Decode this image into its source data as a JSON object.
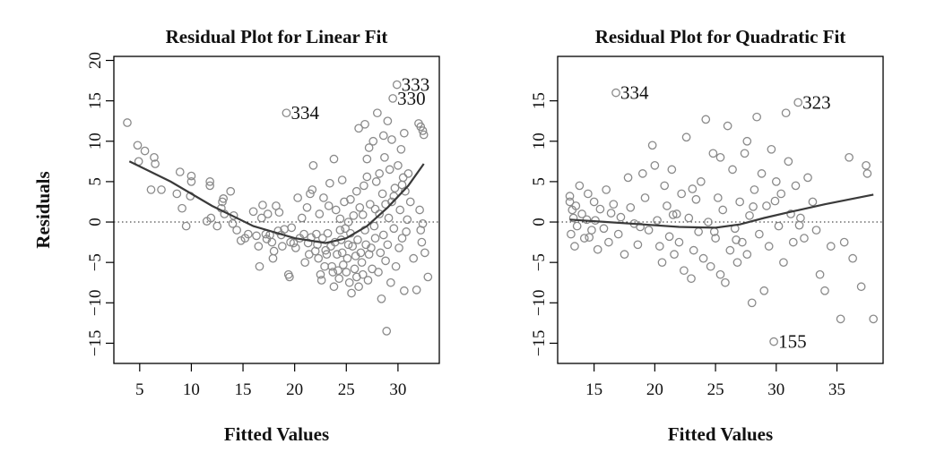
{
  "chart_data": [
    {
      "type": "scatter",
      "title": "Residual Plot for Linear Fit",
      "xlabel": "Fitted Values",
      "ylabel": "Residuals",
      "xlim": [
        2.5,
        34
      ],
      "ylim": [
        -17.5,
        20.5
      ],
      "xticks": [
        5,
        10,
        15,
        20,
        25,
        30
      ],
      "yticks": [
        -15,
        -10,
        -5,
        0,
        5,
        10,
        15,
        20
      ],
      "xtick_labels": [
        "5",
        "10",
        "15",
        "20",
        "25",
        "30"
      ],
      "ytick_labels": [
        "−15",
        "−10",
        "−5",
        "0",
        "5",
        "10",
        "15",
        "20"
      ],
      "reference_line_y": 0,
      "smooth": [
        [
          4,
          7.5
        ],
        [
          8,
          5.0
        ],
        [
          12,
          2.0
        ],
        [
          16,
          -0.5
        ],
        [
          20,
          -2.0
        ],
        [
          23,
          -2.6
        ],
        [
          25,
          -2.0
        ],
        [
          27,
          -0.5
        ],
        [
          29,
          1.8
        ],
        [
          31,
          4.5
        ],
        [
          32.5,
          7.2
        ]
      ],
      "annotations": [
        {
          "text": "334",
          "x": 19.2,
          "y": 13.5
        },
        {
          "text": "333",
          "x": 29.9,
          "y": 17.0
        },
        {
          "text": "330",
          "x": 29.5,
          "y": 15.3
        }
      ],
      "points": [
        [
          3.8,
          12.3
        ],
        [
          4.8,
          9.5
        ],
        [
          5.5,
          8.8
        ],
        [
          6.4,
          8.0
        ],
        [
          4.9,
          7.5
        ],
        [
          6.5,
          7.2
        ],
        [
          6.1,
          4.0
        ],
        [
          7.1,
          4.0
        ],
        [
          8.9,
          6.2
        ],
        [
          8.6,
          3.5
        ],
        [
          9.1,
          1.7
        ],
        [
          9.9,
          3.2
        ],
        [
          10.0,
          5.7
        ],
        [
          10.0,
          5.0
        ],
        [
          11.8,
          5.0
        ],
        [
          11.8,
          4.5
        ],
        [
          9.5,
          -0.5
        ],
        [
          11.5,
          0.1
        ],
        [
          11.9,
          0.5
        ],
        [
          12.9,
          1.7
        ],
        [
          13.0,
          2.5
        ],
        [
          13.1,
          2.9
        ],
        [
          13.2,
          1.0
        ],
        [
          12.5,
          -0.5
        ],
        [
          13.8,
          3.8
        ],
        [
          14.0,
          -0.2
        ],
        [
          14.1,
          0.8
        ],
        [
          14.4,
          -1.0
        ],
        [
          14.8,
          -2.3
        ],
        [
          15.2,
          -2.0
        ],
        [
          15.5,
          -1.5
        ],
        [
          16.0,
          1.3
        ],
        [
          16.3,
          -1.7
        ],
        [
          16.5,
          -3.0
        ],
        [
          16.6,
          -5.5
        ],
        [
          16.8,
          0.5
        ],
        [
          16.9,
          2.1
        ],
        [
          17.2,
          -1.5
        ],
        [
          17.3,
          -2.1
        ],
        [
          17.4,
          1.0
        ],
        [
          17.6,
          -1.6
        ],
        [
          17.8,
          -2.5
        ],
        [
          17.9,
          -4.5
        ],
        [
          18.0,
          -3.6
        ],
        [
          18.2,
          2.0
        ],
        [
          18.4,
          -1.1
        ],
        [
          18.5,
          1.2
        ],
        [
          18.7,
          -1.6
        ],
        [
          18.8,
          -3.0
        ],
        [
          19.0,
          -0.9
        ],
        [
          19.2,
          13.5
        ],
        [
          19.4,
          -6.5
        ],
        [
          19.5,
          -6.8
        ],
        [
          19.6,
          -2.5
        ],
        [
          19.7,
          -0.7
        ],
        [
          19.9,
          -2.6
        ],
        [
          20.1,
          -3.2
        ],
        [
          20.3,
          3.0
        ],
        [
          20.5,
          -2.0
        ],
        [
          20.7,
          0.5
        ],
        [
          20.9,
          -1.5
        ],
        [
          21.0,
          -5.0
        ],
        [
          21.2,
          1.8
        ],
        [
          21.3,
          -2.6
        ],
        [
          21.4,
          -4.0
        ],
        [
          21.5,
          3.5
        ],
        [
          21.6,
          -1.9
        ],
        [
          21.7,
          4.0
        ],
        [
          21.8,
          7.0
        ],
        [
          22.0,
          -3.6
        ],
        [
          22.1,
          -1.5
        ],
        [
          22.2,
          -2.8
        ],
        [
          22.3,
          -4.5
        ],
        [
          22.4,
          1.0
        ],
        [
          22.5,
          -6.5
        ],
        [
          22.6,
          -7.2
        ],
        [
          22.7,
          -2.0
        ],
        [
          22.8,
          3.0
        ],
        [
          22.9,
          -5.5
        ],
        [
          23.0,
          -3.5
        ],
        [
          23.1,
          -4.0
        ],
        [
          23.2,
          -1.4
        ],
        [
          23.3,
          2.0
        ],
        [
          23.4,
          4.8
        ],
        [
          23.5,
          -3.0
        ],
        [
          23.6,
          -5.5
        ],
        [
          23.7,
          -6.2
        ],
        [
          23.8,
          -8.0
        ],
        [
          23.9,
          -2.5
        ],
        [
          24.0,
          1.5
        ],
        [
          24.1,
          -4.0
        ],
        [
          24.2,
          -6.0
        ],
        [
          24.3,
          -7.0
        ],
        [
          24.4,
          -1.0
        ],
        [
          24.5,
          -2.2
        ],
        [
          24.6,
          -3.8
        ],
        [
          24.7,
          -5.3
        ],
        [
          24.8,
          2.5
        ],
        [
          24.9,
          -0.8
        ],
        [
          25.0,
          -6.2
        ],
        [
          25.1,
          -4.5
        ],
        [
          25.2,
          -2.8
        ],
        [
          25.3,
          -7.5
        ],
        [
          25.4,
          -1.4
        ],
        [
          25.5,
          -8.8
        ],
        [
          25.6,
          -3.0
        ],
        [
          25.7,
          0.8
        ],
        [
          25.8,
          -5.8
        ],
        [
          25.9,
          -4.2
        ],
        [
          26.0,
          -6.8
        ],
        [
          26.1,
          -2.2
        ],
        [
          26.2,
          -8.0
        ],
        [
          26.3,
          1.8
        ],
        [
          26.4,
          -3.8
        ],
        [
          26.5,
          -5.0
        ],
        [
          26.6,
          -6.5
        ],
        [
          26.7,
          4.5
        ],
        [
          26.8,
          -1.0
        ],
        [
          26.9,
          -2.8
        ],
        [
          27.0,
          7.8
        ],
        [
          27.1,
          -7.2
        ],
        [
          27.2,
          -4.0
        ],
        [
          27.3,
          2.2
        ],
        [
          27.4,
          -3.2
        ],
        [
          27.5,
          -5.8
        ],
        [
          27.6,
          10.0
        ],
        [
          27.7,
          -0.5
        ],
        [
          27.8,
          -2.0
        ],
        [
          27.9,
          5.0
        ],
        [
          28.0,
          13.5
        ],
        [
          28.1,
          -6.2
        ],
        [
          28.2,
          1.0
        ],
        [
          28.3,
          -3.8
        ],
        [
          28.4,
          -9.5
        ],
        [
          28.5,
          3.5
        ],
        [
          28.6,
          -1.6
        ],
        [
          28.7,
          8.0
        ],
        [
          28.8,
          -4.8
        ],
        [
          28.9,
          -13.5
        ],
        [
          29.0,
          -2.8
        ],
        [
          29.1,
          0.5
        ],
        [
          29.2,
          6.5
        ],
        [
          29.3,
          -7.5
        ],
        [
          29.4,
          2.5
        ],
        [
          29.5,
          15.3
        ],
        [
          29.6,
          -0.8
        ],
        [
          29.7,
          4.2
        ],
        [
          29.8,
          -5.5
        ],
        [
          29.9,
          17.0
        ],
        [
          30.0,
          7.0
        ],
        [
          30.1,
          -3.2
        ],
        [
          30.2,
          1.5
        ],
        [
          30.3,
          9.0
        ],
        [
          30.4,
          -2.0
        ],
        [
          30.5,
          5.5
        ],
        [
          30.6,
          -8.5
        ],
        [
          30.7,
          3.8
        ],
        [
          30.8,
          -1.2
        ],
        [
          30.9,
          0.3
        ],
        [
          31.0,
          6.0
        ],
        [
          31.2,
          2.5
        ],
        [
          31.5,
          -4.5
        ],
        [
          31.8,
          -8.4
        ],
        [
          32.0,
          12.2
        ],
        [
          32.2,
          11.8
        ],
        [
          32.4,
          11.3
        ],
        [
          32.5,
          10.8
        ],
        [
          32.1,
          1.5
        ],
        [
          32.3,
          -2.5
        ],
        [
          32.6,
          -3.8
        ],
        [
          32.9,
          -6.8
        ],
        [
          32.2,
          -1.0
        ],
        [
          32.4,
          -0.2
        ],
        [
          29.0,
          12.5
        ],
        [
          28.6,
          10.7
        ],
        [
          27.2,
          9.2
        ],
        [
          26.2,
          11.6
        ],
        [
          26.8,
          12.1
        ],
        [
          30.6,
          11.0
        ],
        [
          29.4,
          10.2
        ],
        [
          28.2,
          6.0
        ],
        [
          27.0,
          5.6
        ],
        [
          26.0,
          3.8
        ],
        [
          25.4,
          2.8
        ],
        [
          24.6,
          5.2
        ],
        [
          23.8,
          7.8
        ],
        [
          24.4,
          0.4
        ],
        [
          25.2,
          0.0
        ],
        [
          26.6,
          0.9
        ],
        [
          27.8,
          1.6
        ],
        [
          28.8,
          2.2
        ],
        [
          29.6,
          3.2
        ],
        [
          30.4,
          4.6
        ]
      ]
    },
    {
      "type": "scatter",
      "title": "Residual Plot for Quadratic Fit",
      "xlabel": "Fitted Values",
      "ylabel": "",
      "xlim": [
        12,
        38.8
      ],
      "ylim": [
        -17.5,
        20.5
      ],
      "xticks": [
        15,
        20,
        25,
        30,
        35
      ],
      "yticks": [
        -15,
        -10,
        -5,
        0,
        5,
        10,
        15
      ],
      "xtick_labels": [
        "15",
        "20",
        "25",
        "30",
        "35"
      ],
      "ytick_labels": [
        "−15",
        "−10",
        "−5",
        "0",
        "5",
        "10",
        "15"
      ],
      "reference_line_y": 0,
      "smooth": [
        [
          13,
          0.3
        ],
        [
          16,
          0.0
        ],
        [
          19,
          -0.3
        ],
        [
          22,
          -0.6
        ],
        [
          25,
          -0.7
        ],
        [
          27,
          -0.3
        ],
        [
          29,
          0.5
        ],
        [
          31,
          1.2
        ],
        [
          34,
          2.2
        ],
        [
          38,
          3.4
        ]
      ],
      "annotations": [
        {
          "text": "334",
          "x": 16.8,
          "y": 16.0
        },
        {
          "text": "323",
          "x": 31.8,
          "y": 14.8
        },
        {
          "text": "155",
          "x": 29.8,
          "y": -14.8
        }
      ],
      "points": [
        [
          13.0,
          3.2
        ],
        [
          13.0,
          2.5
        ],
        [
          13.1,
          -1.5
        ],
        [
          13.2,
          1.5
        ],
        [
          13.3,
          0.5
        ],
        [
          13.4,
          -3.0
        ],
        [
          13.5,
          2.0
        ],
        [
          13.6,
          -0.5
        ],
        [
          13.8,
          4.5
        ],
        [
          14.0,
          1.0
        ],
        [
          14.2,
          -2.0
        ],
        [
          14.4,
          0.3
        ],
        [
          14.5,
          3.5
        ],
        [
          14.8,
          -1.0
        ],
        [
          15.0,
          2.5
        ],
        [
          15.1,
          0.2
        ],
        [
          15.3,
          -3.4
        ],
        [
          15.5,
          1.6
        ],
        [
          15.8,
          -0.8
        ],
        [
          16.0,
          4.0
        ],
        [
          16.2,
          -2.5
        ],
        [
          16.4,
          1.1
        ],
        [
          16.8,
          16.0
        ],
        [
          17.0,
          -1.5
        ],
        [
          17.2,
          0.6
        ],
        [
          17.5,
          -4.0
        ],
        [
          17.8,
          5.5
        ],
        [
          18.0,
          1.8
        ],
        [
          18.3,
          -0.2
        ],
        [
          18.6,
          -2.8
        ],
        [
          19.0,
          6.0
        ],
        [
          19.2,
          3.0
        ],
        [
          19.5,
          -1.0
        ],
        [
          19.8,
          9.5
        ],
        [
          20.0,
          7.0
        ],
        [
          20.2,
          0.2
        ],
        [
          20.4,
          -3.0
        ],
        [
          20.6,
          -5.0
        ],
        [
          20.8,
          4.5
        ],
        [
          21.0,
          2.0
        ],
        [
          21.2,
          -1.8
        ],
        [
          21.4,
          6.5
        ],
        [
          21.6,
          -4.0
        ],
        [
          21.8,
          1.0
        ],
        [
          22.0,
          -2.5
        ],
        [
          22.2,
          3.5
        ],
        [
          22.4,
          -6.0
        ],
        [
          22.6,
          10.5
        ],
        [
          22.8,
          0.5
        ],
        [
          23.0,
          -7.0
        ],
        [
          23.2,
          -3.5
        ],
        [
          23.4,
          2.8
        ],
        [
          23.6,
          -1.2
        ],
        [
          23.8,
          5.0
        ],
        [
          24.0,
          -4.5
        ],
        [
          24.2,
          12.7
        ],
        [
          24.4,
          0.0
        ],
        [
          24.6,
          -5.5
        ],
        [
          24.8,
          8.5
        ],
        [
          25.0,
          -2.0
        ],
        [
          25.2,
          3.0
        ],
        [
          25.4,
          -6.5
        ],
        [
          25.6,
          1.5
        ],
        [
          25.8,
          -7.5
        ],
        [
          26.0,
          11.9
        ],
        [
          26.2,
          -3.5
        ],
        [
          26.4,
          6.5
        ],
        [
          26.6,
          -0.8
        ],
        [
          26.8,
          -5.0
        ],
        [
          27.0,
          2.5
        ],
        [
          27.2,
          -2.5
        ],
        [
          27.4,
          8.5
        ],
        [
          27.6,
          -4.0
        ],
        [
          27.8,
          0.8
        ],
        [
          28.0,
          -10.0
        ],
        [
          28.2,
          4.0
        ],
        [
          28.4,
          13.0
        ],
        [
          28.6,
          -1.5
        ],
        [
          28.8,
          6.0
        ],
        [
          29.0,
          -8.5
        ],
        [
          29.2,
          2.0
        ],
        [
          29.4,
          -3.0
        ],
        [
          29.6,
          9.0
        ],
        [
          29.8,
          -14.8
        ],
        [
          30.0,
          5.0
        ],
        [
          30.2,
          -0.5
        ],
        [
          30.4,
          3.5
        ],
        [
          30.6,
          -5.0
        ],
        [
          30.8,
          13.5
        ],
        [
          31.0,
          7.5
        ],
        [
          31.2,
          1.0
        ],
        [
          31.4,
          -2.5
        ],
        [
          31.6,
          4.5
        ],
        [
          31.8,
          14.8
        ],
        [
          32.0,
          0.5
        ],
        [
          32.3,
          -2.0
        ],
        [
          32.6,
          5.5
        ],
        [
          33.0,
          2.5
        ],
        [
          33.3,
          -1.0
        ],
        [
          33.6,
          -6.5
        ],
        [
          34.0,
          -8.5
        ],
        [
          34.5,
          -3.0
        ],
        [
          35.3,
          -12.0
        ],
        [
          35.6,
          -2.5
        ],
        [
          36.0,
          8.0
        ],
        [
          36.3,
          -4.5
        ],
        [
          37.0,
          -8.0
        ],
        [
          37.4,
          7.0
        ],
        [
          37.5,
          6.0
        ],
        [
          38.0,
          -12.0
        ],
        [
          14.6,
          -1.9
        ],
        [
          16.6,
          2.2
        ],
        [
          18.8,
          -0.6
        ],
        [
          21.5,
          0.9
        ],
        [
          23.1,
          4.1
        ],
        [
          24.9,
          -1.2
        ],
        [
          26.7,
          -2.2
        ],
        [
          28.1,
          1.9
        ],
        [
          29.9,
          2.6
        ],
        [
          31.9,
          -0.4
        ],
        [
          27.6,
          10.0
        ],
        [
          25.4,
          8.0
        ]
      ]
    }
  ]
}
